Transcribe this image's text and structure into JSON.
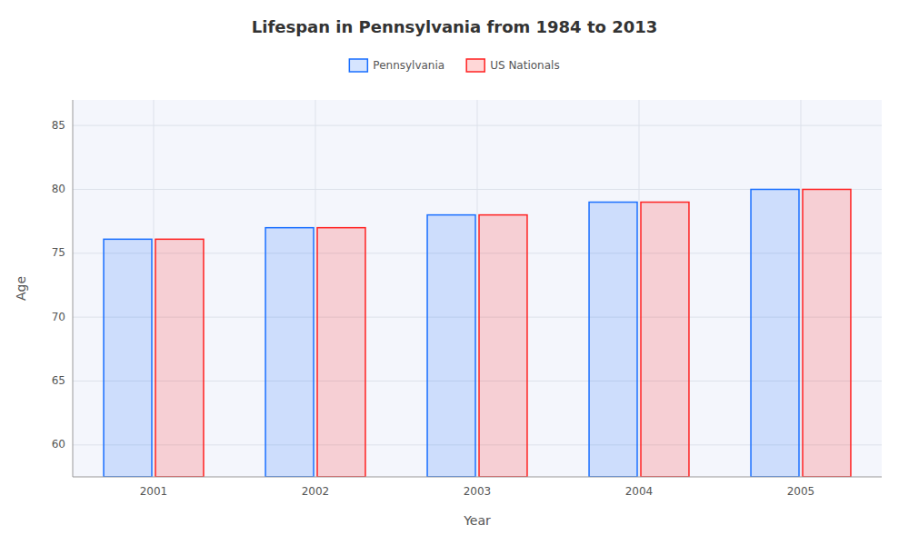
{
  "chart_data": {
    "type": "bar",
    "title": "Lifespan in Pennsylvania from 1984 to 2013",
    "x_label": "Year",
    "y_label": "Age",
    "categories": [
      "2001",
      "2002",
      "2003",
      "2004",
      "2005"
    ],
    "series": [
      {
        "name": "Pennsylvania",
        "color": "#1a6fff",
        "values": [
          76.1,
          77.0,
          78.0,
          79.0,
          80.0
        ]
      },
      {
        "name": "US Nationals",
        "color": "#ff2222",
        "values": [
          76.1,
          77.0,
          78.0,
          79.0,
          80.0
        ]
      }
    ],
    "ylim": [
      57.5,
      87
    ],
    "yticks": [
      60,
      65,
      70,
      75,
      80,
      85
    ],
    "grid": true,
    "legend": "top"
  }
}
